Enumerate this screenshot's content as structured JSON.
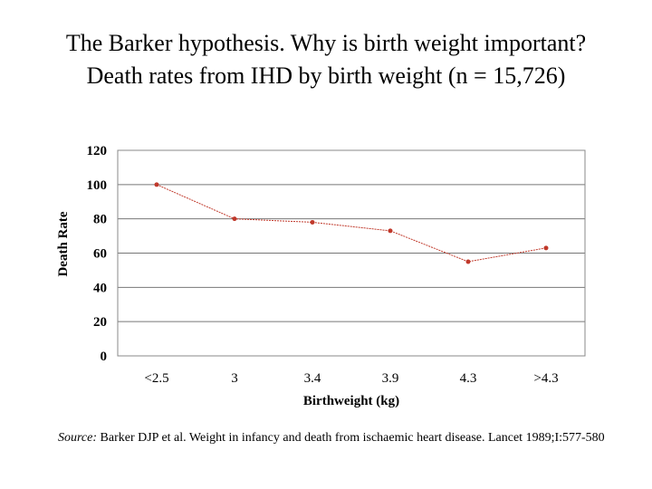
{
  "title": {
    "line1": "The Barker hypothesis. Why is birth weight important?",
    "line2": "Death rates from IHD by birth weight (n = 15,726)"
  },
  "source": {
    "label": "Source:",
    "text": "Barker DJP et al. Weight in infancy and death from ischaemic heart disease. Lancet 1989;I:577-580"
  },
  "chart_data": {
    "type": "line",
    "title": "",
    "xlabel": "Birthweight (kg)",
    "ylabel": "Death Rate",
    "categories": [
      "<2.5",
      "3",
      "3.4",
      "3.9",
      "4.3",
      ">4.3"
    ],
    "values": [
      100,
      80,
      78,
      73,
      55,
      63
    ],
    "ylim": [
      0,
      120
    ],
    "yticks": [
      0,
      20,
      40,
      60,
      80,
      100,
      120
    ],
    "grid": true,
    "legend": "none",
    "line_color": "#c0392b"
  }
}
